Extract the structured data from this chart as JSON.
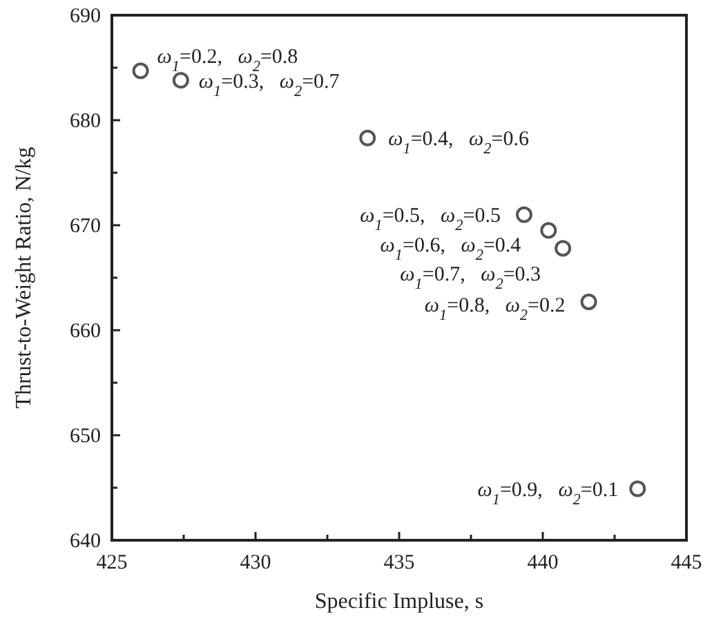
{
  "chart_data": {
    "type": "scatter",
    "xlabel": "Specific Impluse, s",
    "ylabel": "Thrust-to-Weight Ratio, N/kg",
    "x": [
      426.0,
      427.4,
      433.9,
      439.35,
      440.2,
      440.7,
      441.6,
      443.3
    ],
    "series": [
      {
        "color": "#555555",
        "values": [
          684.7,
          683.8,
          678.3,
          671.0,
          669.5,
          667.8,
          662.7,
          644.9
        ]
      }
    ],
    "marker": "circle",
    "grid": false,
    "xlim": [
      425,
      445
    ],
    "xticks": [
      425,
      {
        "value": 427.5,
        "label": null
      },
      430,
      {
        "value": 432.5,
        "label": null
      },
      435,
      {
        "value": 437.5,
        "label": null
      },
      440,
      {
        "value": 442.5,
        "label": null
      },
      445
    ],
    "ylim": [
      640,
      690
    ],
    "yticks": [
      640,
      {
        "value": 645,
        "label": null
      },
      650,
      {
        "value": 655,
        "label": null
      },
      660,
      {
        "value": 665,
        "label": null
      },
      670,
      {
        "value": 675,
        "label": null
      },
      680,
      {
        "value": 685,
        "label": null
      },
      690
    ],
    "annotations": [
      {
        "text": "ω$_{1}$=0.2,   ω$_{2}$=0.8",
        "x": 426.0,
        "y": 684.7
      },
      {
        "text": "ω$_{1}$=0.3,   ω$_{2}$=0.7",
        "x": 427.4,
        "y": 683.8
      },
      {
        "text": "ω$_{1}$=0.4,   ω$_{2}$=0.6",
        "x": 433.9,
        "y": 678.3
      },
      {
        "text": "ω$_{1}$=0.5,   ω$_{2}$=0.5",
        "x": 439.35,
        "y": 671.0
      },
      {
        "text": "ω$_{1}$=0.6,   ω$_{2}$=0.4",
        "x": 440.2,
        "y": 669.5
      },
      {
        "text": "ω$_{1}$=0.7,   ω$_{2}$=0.3",
        "x": 440.7,
        "y": 667.8
      },
      {
        "text": "ω$_{1}$=0.8,   ω$_{2}$=0.2",
        "x": 441.6,
        "y": 662.7
      },
      {
        "text": "ω$_{1}$=0.9,   ω$_{2}$=0.1",
        "x": 443.3,
        "y": 644.9
      }
    ]
  }
}
